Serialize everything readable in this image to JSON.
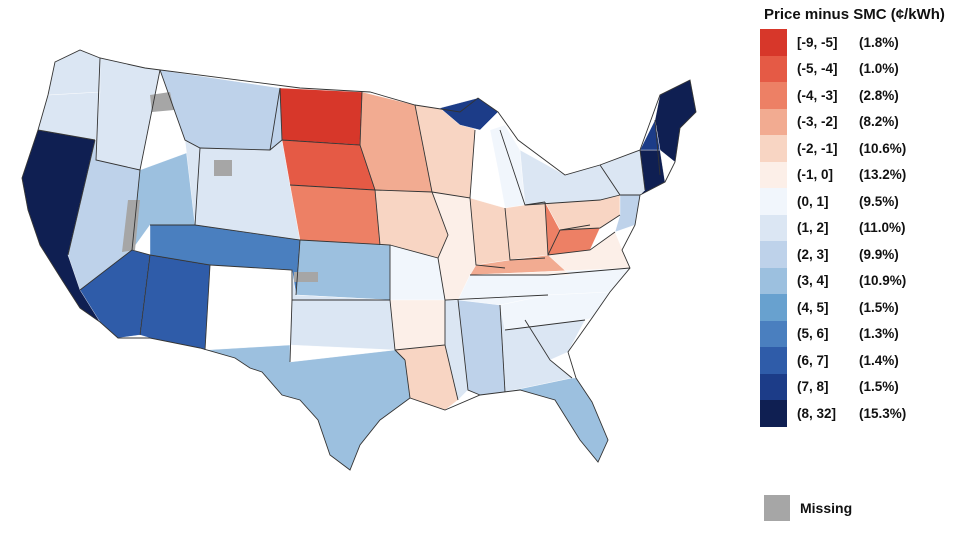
{
  "map": {
    "regions": [
      {
        "id": "pacific-coast-south",
        "bin": 14
      },
      {
        "id": "oregon",
        "bin": 7
      },
      {
        "id": "washington",
        "bin": 7
      },
      {
        "id": "nevada",
        "bin": 8
      },
      {
        "id": "arizona",
        "bin": 12
      },
      {
        "id": "new-mexico",
        "bin": 12
      },
      {
        "id": "colorado",
        "bin": 11
      },
      {
        "id": "utah",
        "bin": 9
      },
      {
        "id": "idaho",
        "bin": 7
      },
      {
        "id": "montana",
        "bin": 8
      },
      {
        "id": "wyoming",
        "bin": 7
      },
      {
        "id": "north-dakota",
        "bin": 0
      },
      {
        "id": "south-dakota",
        "bin": 1
      },
      {
        "id": "nebraska",
        "bin": 2
      },
      {
        "id": "kansas",
        "bin": 9
      },
      {
        "id": "oklahoma",
        "bin": 7
      },
      {
        "id": "texas",
        "bin": 9
      },
      {
        "id": "minnesota",
        "bin": 3
      },
      {
        "id": "iowa",
        "bin": 4
      },
      {
        "id": "missouri",
        "bin": 6
      },
      {
        "id": "arkansas",
        "bin": 5
      },
      {
        "id": "louisiana",
        "bin": 4
      },
      {
        "id": "wisconsin",
        "bin": 4
      },
      {
        "id": "upper-peninsula",
        "bin": 13
      },
      {
        "id": "lower-michigan",
        "bin": 6
      },
      {
        "id": "illinois",
        "bin": 5
      },
      {
        "id": "indiana",
        "bin": 4
      },
      {
        "id": "ohio",
        "bin": 4
      },
      {
        "id": "kentucky",
        "bin": 3
      },
      {
        "id": "tennessee",
        "bin": 6
      },
      {
        "id": "mississippi",
        "bin": 7
      },
      {
        "id": "alabama",
        "bin": 8
      },
      {
        "id": "georgia",
        "bin": 7
      },
      {
        "id": "florida",
        "bin": 9
      },
      {
        "id": "south-carolina",
        "bin": 7
      },
      {
        "id": "north-carolina",
        "bin": 6
      },
      {
        "id": "virginia",
        "bin": 5
      },
      {
        "id": "west-virginia",
        "bin": 2
      },
      {
        "id": "pennsylvania",
        "bin": 4
      },
      {
        "id": "new-york",
        "bin": 7
      },
      {
        "id": "new-jersey",
        "bin": 8
      },
      {
        "id": "new-england-south",
        "bin": 14
      },
      {
        "id": "maine",
        "bin": 14
      },
      {
        "id": "new-hampshire-vermont",
        "bin": 13
      }
    ],
    "missing_regions": [
      "nevada-east-strip",
      "montana-patch",
      "wyoming-patch",
      "oklahoma-panhandle-patch"
    ]
  },
  "legend": {
    "title": "Price minus SMC (¢/kWh)",
    "bins": [
      {
        "range": "[-9, -5]",
        "share": "(1.8%)",
        "color": "#d7372a"
      },
      {
        "range": "(-5, -4]",
        "share": "(1.0%)",
        "color": "#e55a45"
      },
      {
        "range": "(-4, -3]",
        "share": "(2.8%)",
        "color": "#ed8065"
      },
      {
        "range": "(-3, -2]",
        "share": "(8.2%)",
        "color": "#f2ab91"
      },
      {
        "range": "(-2, -1]",
        "share": "(10.6%)",
        "color": "#f8d5c3"
      },
      {
        "range": "(-1, 0]",
        "share": "(13.2%)",
        "color": "#fcefe8"
      },
      {
        "range": "(0, 1]",
        "share": "(9.5%)",
        "color": "#f1f6fc"
      },
      {
        "range": "(1, 2]",
        "share": "(11.0%)",
        "color": "#dbe6f3"
      },
      {
        "range": "(2, 3]",
        "share": "(9.9%)",
        "color": "#bed2ea"
      },
      {
        "range": "(3, 4]",
        "share": "(10.9%)",
        "color": "#9cc0df"
      },
      {
        "range": "(4, 5]",
        "share": "(1.5%)",
        "color": "#68a1cf"
      },
      {
        "range": "(5, 6]",
        "share": "(1.3%)",
        "color": "#4a7fbf"
      },
      {
        "range": "(6, 7]",
        "share": "(1.4%)",
        "color": "#2f5ca9"
      },
      {
        "range": "(7, 8]",
        "share": "(1.5%)",
        "color": "#1c3c88"
      },
      {
        "range": "(8, 32]",
        "share": "(15.3%)",
        "color": "#0f1f52"
      }
    ],
    "missing": {
      "label": "Missing",
      "color": "#a6a6a6"
    }
  }
}
